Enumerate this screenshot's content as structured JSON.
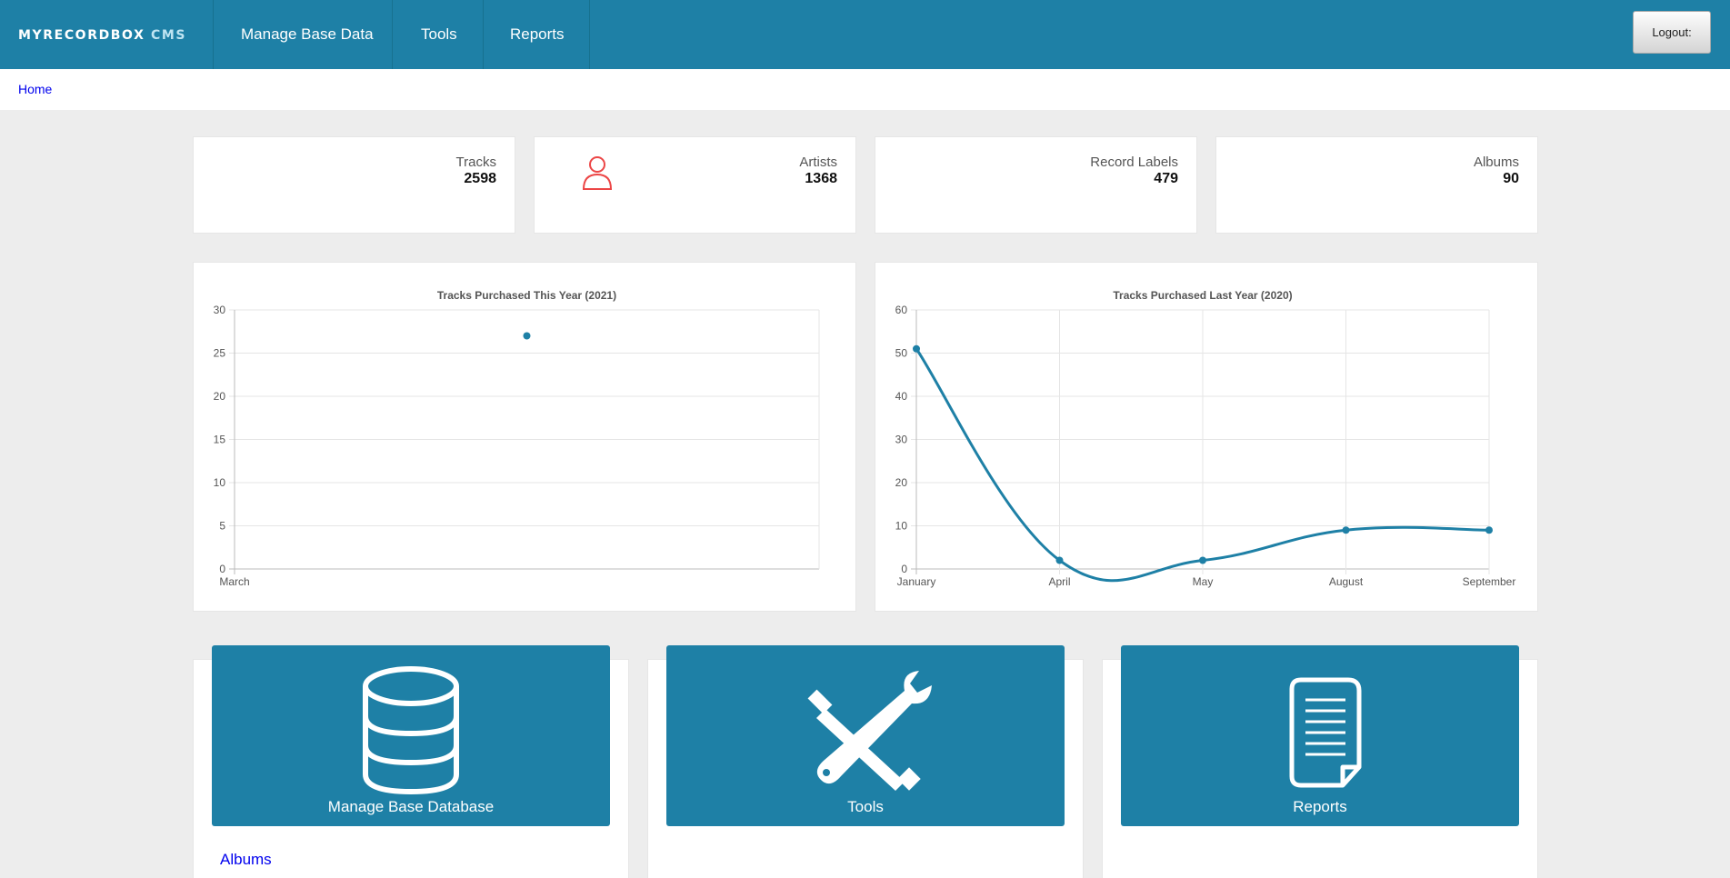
{
  "header": {
    "brand_main": "MYRECORDBOX",
    "brand_suffix": "CMS",
    "nav": [
      "Manage Base Data",
      "Tools",
      "Reports"
    ],
    "logout_label": "Logout:"
  },
  "breadcrumb": {
    "home": "Home"
  },
  "stats": [
    {
      "label": "Tracks",
      "value": "2598",
      "icon": "music-note-icon",
      "color": "#fa8a0a"
    },
    {
      "label": "Artists",
      "value": "1368",
      "icon": "people-group-icon",
      "color": "#ec4646"
    },
    {
      "label": "Record Labels",
      "value": "479",
      "icon": "microphone-icon",
      "color": "#4ead56"
    },
    {
      "label": "Albums",
      "value": "90",
      "icon": "music-folder-icon",
      "color": "#12b7cd"
    }
  ],
  "chart_data": [
    {
      "type": "line",
      "title": "Tracks Purchased This Year (2021)",
      "categories": [
        "March"
      ],
      "values": [
        27
      ],
      "ylim": [
        0,
        30
      ],
      "yticks": [
        0,
        5,
        10,
        15,
        20,
        25,
        30
      ],
      "grid": true,
      "color": "#1e80a6"
    },
    {
      "type": "line",
      "title": "Tracks Purchased Last Year (2020)",
      "categories": [
        "January",
        "April",
        "May",
        "August",
        "September"
      ],
      "values": [
        51,
        2,
        2,
        9,
        9
      ],
      "ylim": [
        0,
        60
      ],
      "yticks": [
        0,
        10,
        20,
        30,
        40,
        50,
        60
      ],
      "grid": true,
      "color": "#1e80a6"
    }
  ],
  "tiles": [
    {
      "label": "Manage Base Database",
      "icon": "database-icon"
    },
    {
      "label": "Tools",
      "icon": "tools-icon"
    },
    {
      "label": "Reports",
      "icon": "document-icon"
    }
  ],
  "links": {
    "albums": "Albums"
  }
}
